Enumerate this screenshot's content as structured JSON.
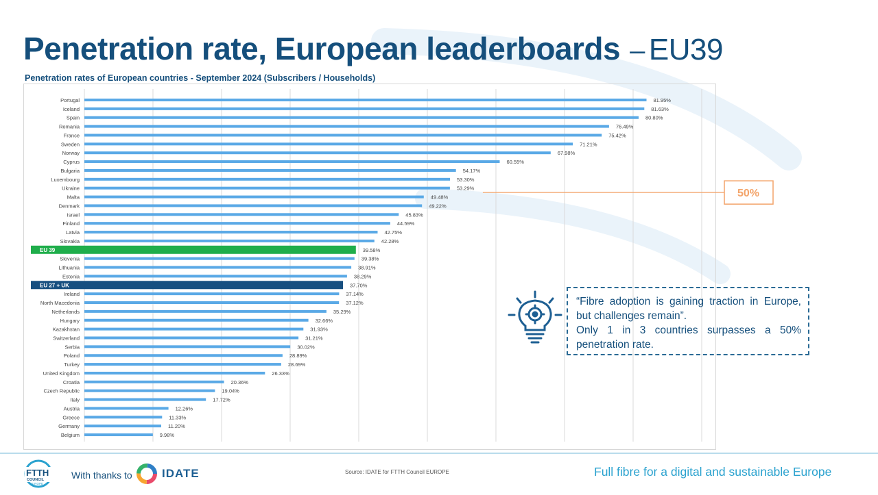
{
  "header": {
    "title_main": "Penetration rate, European leaderboards",
    "title_dash": "–",
    "title_suffix": "EU39",
    "subtitle": "Penetration rates of European countries - September 2024 (Subscribers / Households)"
  },
  "chart_data": {
    "type": "bar",
    "orientation": "horizontal",
    "title": "",
    "xlabel": "",
    "ylabel": "",
    "xlim": [
      0,
      90
    ],
    "grid": true,
    "categories": [
      "Portugal",
      "Iceland",
      "Spain",
      "Romania",
      "France",
      "Sweden",
      "Norway",
      "Cyprus",
      "Bulgaria",
      "Luxembourg",
      "Ukraine",
      "Malta",
      "Denmark",
      "Israel",
      "Finland",
      "Latvia",
      "Slovakia",
      "EU 39",
      "Slovenia",
      "Lithuania",
      "Estonia",
      "EU 27 + UK",
      "Ireland",
      "North Macedonia",
      "Netherlands",
      "Hungary",
      "Kazakhstan",
      "Switzerland",
      "Serbia",
      "Poland",
      "Turkey",
      "United Kingdom",
      "Croatia",
      "Czech Republic",
      "Italy",
      "Austria",
      "Greece",
      "Germany",
      "Belgium"
    ],
    "values": [
      81.95,
      81.63,
      80.8,
      76.49,
      75.42,
      71.21,
      67.98,
      60.55,
      54.17,
      53.3,
      53.29,
      49.48,
      49.22,
      45.83,
      44.59,
      42.75,
      42.28,
      39.58,
      39.38,
      38.91,
      38.29,
      37.7,
      37.14,
      37.12,
      35.29,
      32.66,
      31.93,
      31.21,
      30.02,
      28.89,
      28.69,
      26.33,
      20.36,
      19.04,
      17.72,
      12.26,
      11.33,
      11.2,
      9.98
    ],
    "data_labels": [
      "81.95%",
      "81.63%",
      "80.80%",
      "76.49%",
      "75.42%",
      "71.21%",
      "67.98%",
      "60.55%",
      "54.17%",
      "53.30%",
      "53.29%",
      "49.48%",
      "49.22%",
      "45.83%",
      "44.59%",
      "42.75%",
      "42.28%",
      "39.58%",
      "39.38%",
      "38.91%",
      "38.29%",
      "37.70%",
      "37.14%",
      "37.12%",
      "35.29%",
      "32.66%",
      "31.93%",
      "31.21%",
      "30.02%",
      "28.89%",
      "28.69%",
      "26.33%",
      "20.36%",
      "19.04%",
      "17.72%",
      "12.26%",
      "11.33%",
      "11.20%",
      "9.98%"
    ],
    "highlights": {
      "EU 39": "#1fae4b",
      "EU 27 + UK": "#174f80"
    },
    "bar_color": "#5aa9e6",
    "reference_line": {
      "value": 50,
      "label": "50%",
      "color": "#f3a46a"
    }
  },
  "callout": {
    "quote_line": "“Fibre adoption is gaining traction in Europe, but challenges remain”.",
    "fact_line": "Only 1 in 3 countries surpasses a 50% penetration rate.",
    "icon": "lightbulb-gear-icon"
  },
  "footer": {
    "logo_text_1": "FTTH",
    "logo_text_2": "COUNCIL",
    "logo_text_3": "EUROPE",
    "thanks": "With thanks to",
    "partner": "IDATE",
    "source": "Source: IDATE for FTTH Council EUROPE",
    "tagline": "Full fibre for a digital and sustainable Europe"
  },
  "colors": {
    "title": "#154f7c",
    "accent_light": "#2aa2cf"
  }
}
